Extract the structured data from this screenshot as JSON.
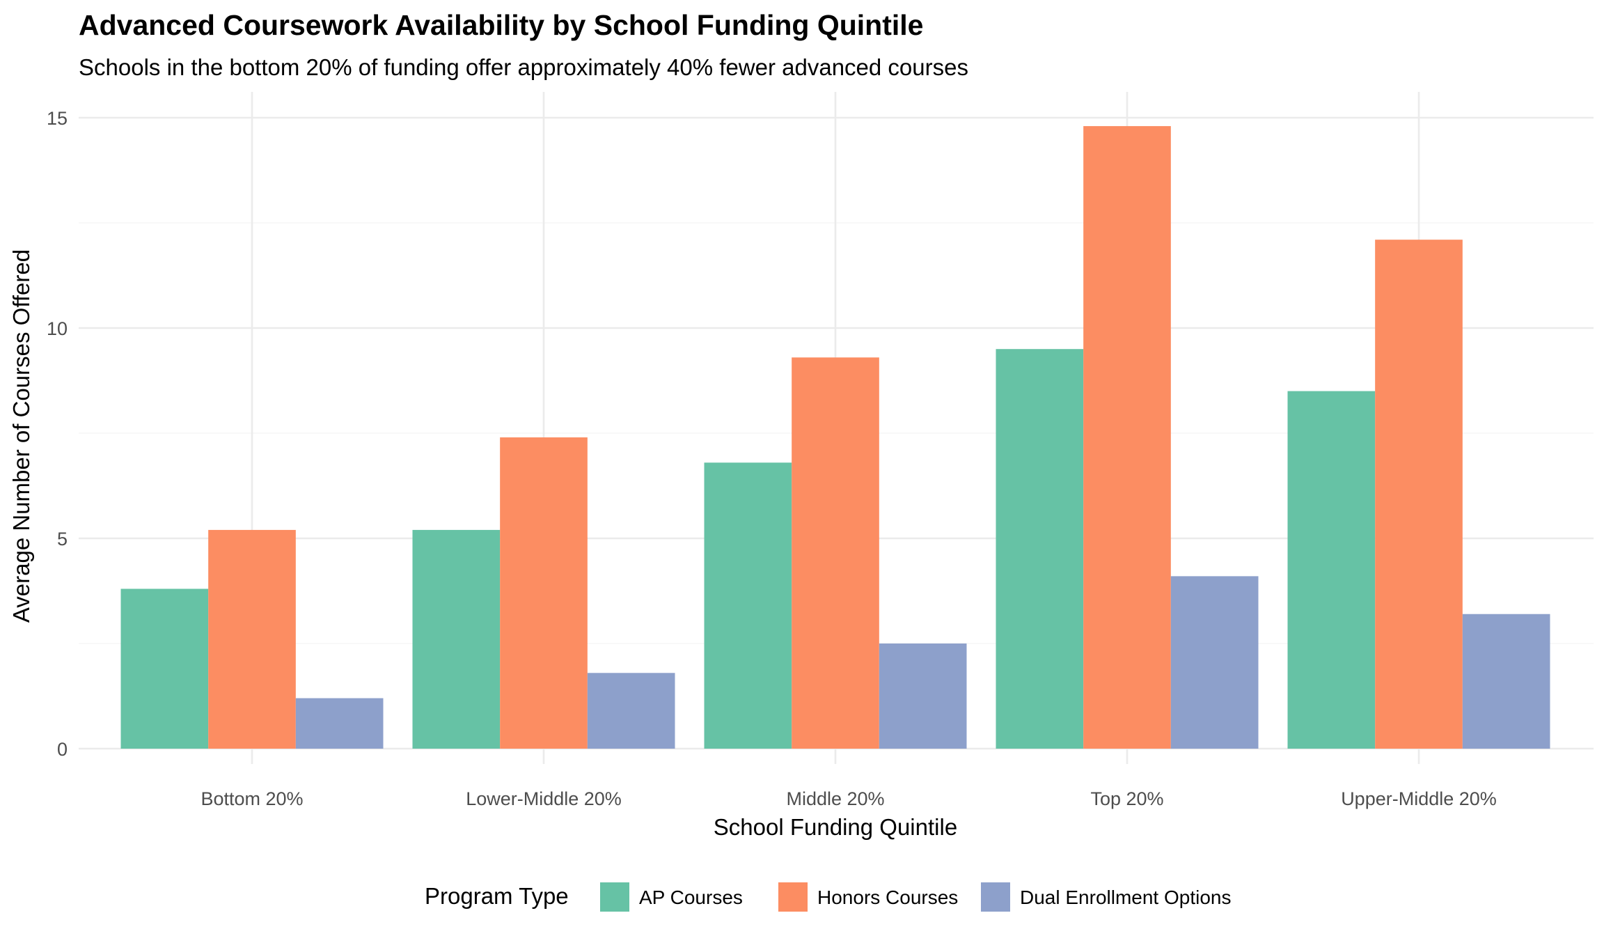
{
  "chart_data": {
    "type": "bar",
    "title": "Advanced Coursework Availability by School Funding Quintile",
    "subtitle": "Schools in the bottom 20% of funding offer approximately 40% fewer advanced courses",
    "xlabel": "School Funding Quintile",
    "ylabel": "Average Number of Courses Offered",
    "categories": [
      "Bottom 20%",
      "Lower-Middle 20%",
      "Middle 20%",
      "Top 20%",
      "Upper-Middle 20%"
    ],
    "series": [
      {
        "name": "AP Courses",
        "color": "#66c2a5",
        "values": [
          3.8,
          5.2,
          6.8,
          9.5,
          8.5
        ]
      },
      {
        "name": "Honors Courses",
        "color": "#fc8d62",
        "values": [
          5.2,
          7.4,
          9.3,
          14.8,
          12.1
        ]
      },
      {
        "name": "Dual Enrollment Options",
        "color": "#8da0cb",
        "values": [
          1.2,
          1.8,
          2.5,
          4.1,
          3.2
        ]
      }
    ],
    "ylim": [
      0,
      15.6
    ],
    "yticks": [
      0,
      5,
      10,
      15
    ],
    "grid": true,
    "legend": {
      "title": "Program Type",
      "position": "bottom"
    }
  }
}
